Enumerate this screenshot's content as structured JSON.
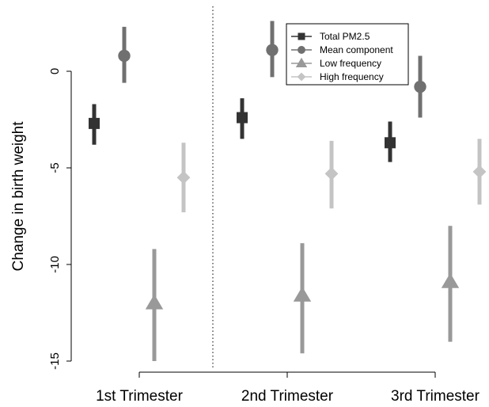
{
  "chart_data": {
    "type": "scatter",
    "title": "",
    "ylabel": "Change in birth weight",
    "xlabel": "",
    "categories": [
      "1st Trimester",
      "2nd Trimester",
      "3rd Trimester"
    ],
    "yticks": [
      "0",
      "-5",
      "-10",
      "-15"
    ],
    "ylim": [
      -15,
      2.5
    ],
    "grid": false,
    "legend_position": "top-right",
    "divider_after_category": 0,
    "series": [
      {
        "name": "Total PM2.5",
        "marker": "square",
        "color": "#333333",
        "values": [
          -2.7,
          -2.4,
          -3.7
        ],
        "lower": [
          -3.8,
          -3.5,
          -4.7
        ],
        "upper": [
          -1.7,
          -1.4,
          -2.6
        ]
      },
      {
        "name": "Mean component",
        "marker": "circle",
        "color": "#707070",
        "values": [
          0.8,
          1.1,
          -0.8
        ],
        "lower": [
          -0.6,
          -0.3,
          -2.4
        ],
        "upper": [
          2.3,
          2.6,
          0.8
        ]
      },
      {
        "name": "Low frequency",
        "marker": "triangle",
        "color": "#999999",
        "values": [
          -12.0,
          -11.6,
          -10.9
        ],
        "lower": [
          -15.0,
          -14.6,
          -14.0
        ],
        "upper": [
          -9.2,
          -8.9,
          -8.0
        ]
      },
      {
        "name": "High frequency",
        "marker": "diamond",
        "color": "#c4c4c4",
        "values": [
          -5.5,
          -5.3,
          -5.2
        ],
        "lower": [
          -7.3,
          -7.1,
          -6.9
        ],
        "upper": [
          -3.7,
          -3.6,
          -3.5
        ]
      }
    ]
  }
}
